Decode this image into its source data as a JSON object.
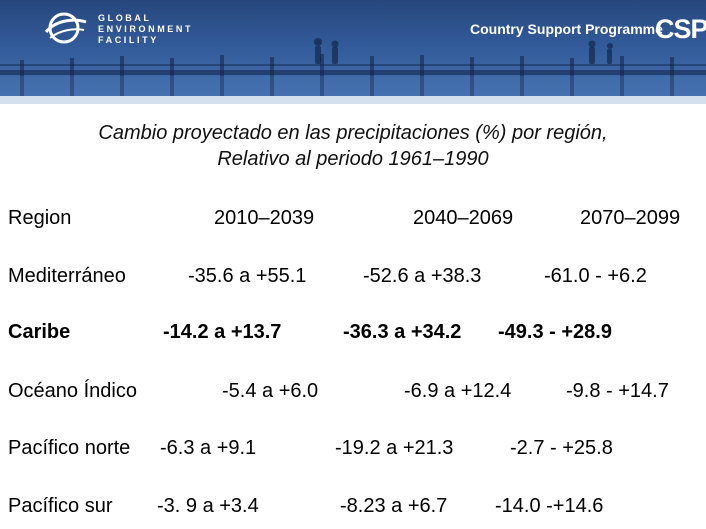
{
  "header": {
    "org_lines": [
      "Global",
      "Environment",
      "Facility"
    ],
    "programme": "Country Support Programme",
    "programme_logo": "CSP"
  },
  "title": {
    "line1": "Cambio proyectado en las precipitaciones (%) por región,",
    "line2": "Relativo al periodo 1961–1990"
  },
  "table": {
    "headers": [
      "Region",
      "2010–2039",
      "2040–2069",
      "2070–2099"
    ],
    "rows": [
      [
        "Mediterráneo",
        "-35.6 a +55.1",
        "-52.6 a +38.3",
        "-61.0 - +6.2"
      ],
      [
        "Caribe",
        "-14.2 a +13.7",
        "-36.3 a +34.2",
        "-49.3 - +28.9"
      ],
      [
        "Océano Índico",
        "-5.4 a +6.0",
        "-6.9 a +12.4",
        "-9.8 - +14.7"
      ],
      [
        "Pacífico norte",
        "-6.3 a +9.1",
        "-19.2 a +21.3",
        "-2.7 - +25.8"
      ],
      [
        "Pacífico sur",
        "-3. 9 a +3.4",
        "-8.23 a +6.7",
        "-14.0 -+14.6"
      ]
    ]
  },
  "colors": {
    "header_dark": "#1f3f78",
    "header_light": "#3f6db0",
    "band": "#d5e0ee"
  },
  "icons": [
    "globe-logo-icon",
    "bridge-silhouette-image"
  ]
}
